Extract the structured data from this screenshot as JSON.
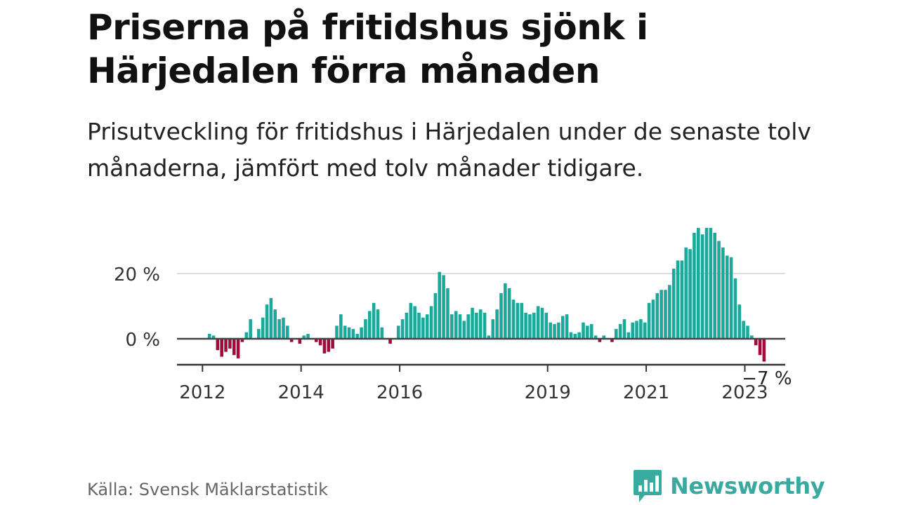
{
  "title": "Priserna på fritidshus sjönk i Härjedalen förra månaden",
  "subtitle": "Prisutveckling för fritidshus i Härjedalen under de senaste tolv månaderna, jämfört med tolv månader tidigare.",
  "source": "Källa: Svensk Mäklarstatistik",
  "brand": {
    "name": "Newsworthy",
    "icon": "newsworthy-logo-icon",
    "color": "#3aa9a0"
  },
  "chart_data": {
    "type": "bar",
    "x_start": "2012-01",
    "x_unit": "month",
    "ylim": [
      -8,
      35
    ],
    "yticks": [
      0,
      20
    ],
    "ytick_labels": [
      "0 %",
      "20 %"
    ],
    "xtick_labels": [
      {
        "label": "2012",
        "month": "2012-01"
      },
      {
        "label": "2014",
        "month": "2014-01"
      },
      {
        "label": "2016",
        "month": "2016-01"
      },
      {
        "label": "2019",
        "month": "2019-01"
      },
      {
        "label": "2021",
        "month": "2021-01"
      },
      {
        "label": "2023",
        "month": "2023-01"
      }
    ],
    "annotation": {
      "label": "−7 %",
      "month": "2023-05"
    },
    "grid": true,
    "colors": {
      "positive": "#1ba99c",
      "negative": "#a3093e",
      "grid": "#dddddd",
      "zero": "#444444",
      "axis": "#333333"
    },
    "values": [
      0,
      1.5,
      1,
      -3.5,
      -5.5,
      -4,
      -3,
      -5,
      -6,
      -1,
      2,
      6,
      0,
      3,
      6.5,
      10.5,
      12.5,
      9,
      6,
      6.5,
      4,
      -1,
      0,
      -1.5,
      1,
      1.5,
      0,
      -1,
      -2,
      -4.5,
      -4,
      -3,
      4,
      7.5,
      4,
      3.5,
      3,
      1.5,
      3.5,
      6,
      8.5,
      11,
      9,
      3.5,
      0,
      -1.5,
      0,
      4,
      6,
      8,
      11,
      10,
      8,
      6.5,
      7.5,
      10,
      14,
      20.5,
      19.5,
      15.5,
      7.5,
      8.5,
      7.5,
      5.5,
      7.5,
      9.5,
      8,
      9,
      8,
      1,
      6,
      9,
      14,
      17,
      15.5,
      12,
      11,
      11,
      8,
      7.5,
      8,
      10,
      9.5,
      8,
      5,
      4.5,
      5,
      7,
      7.5,
      2,
      1.5,
      2,
      5,
      4,
      4.5,
      1,
      -1,
      1,
      0,
      -1,
      3,
      4.5,
      6,
      2,
      5,
      5.5,
      6,
      5,
      11,
      12,
      14,
      15,
      15,
      16.5,
      21.5,
      24,
      24,
      28,
      27.5,
      32.5,
      34,
      32,
      34,
      34,
      32.5,
      30,
      28,
      25.5,
      25,
      18.5,
      10.5,
      5.5,
      4,
      1,
      -2,
      -5,
      -7
    ]
  }
}
